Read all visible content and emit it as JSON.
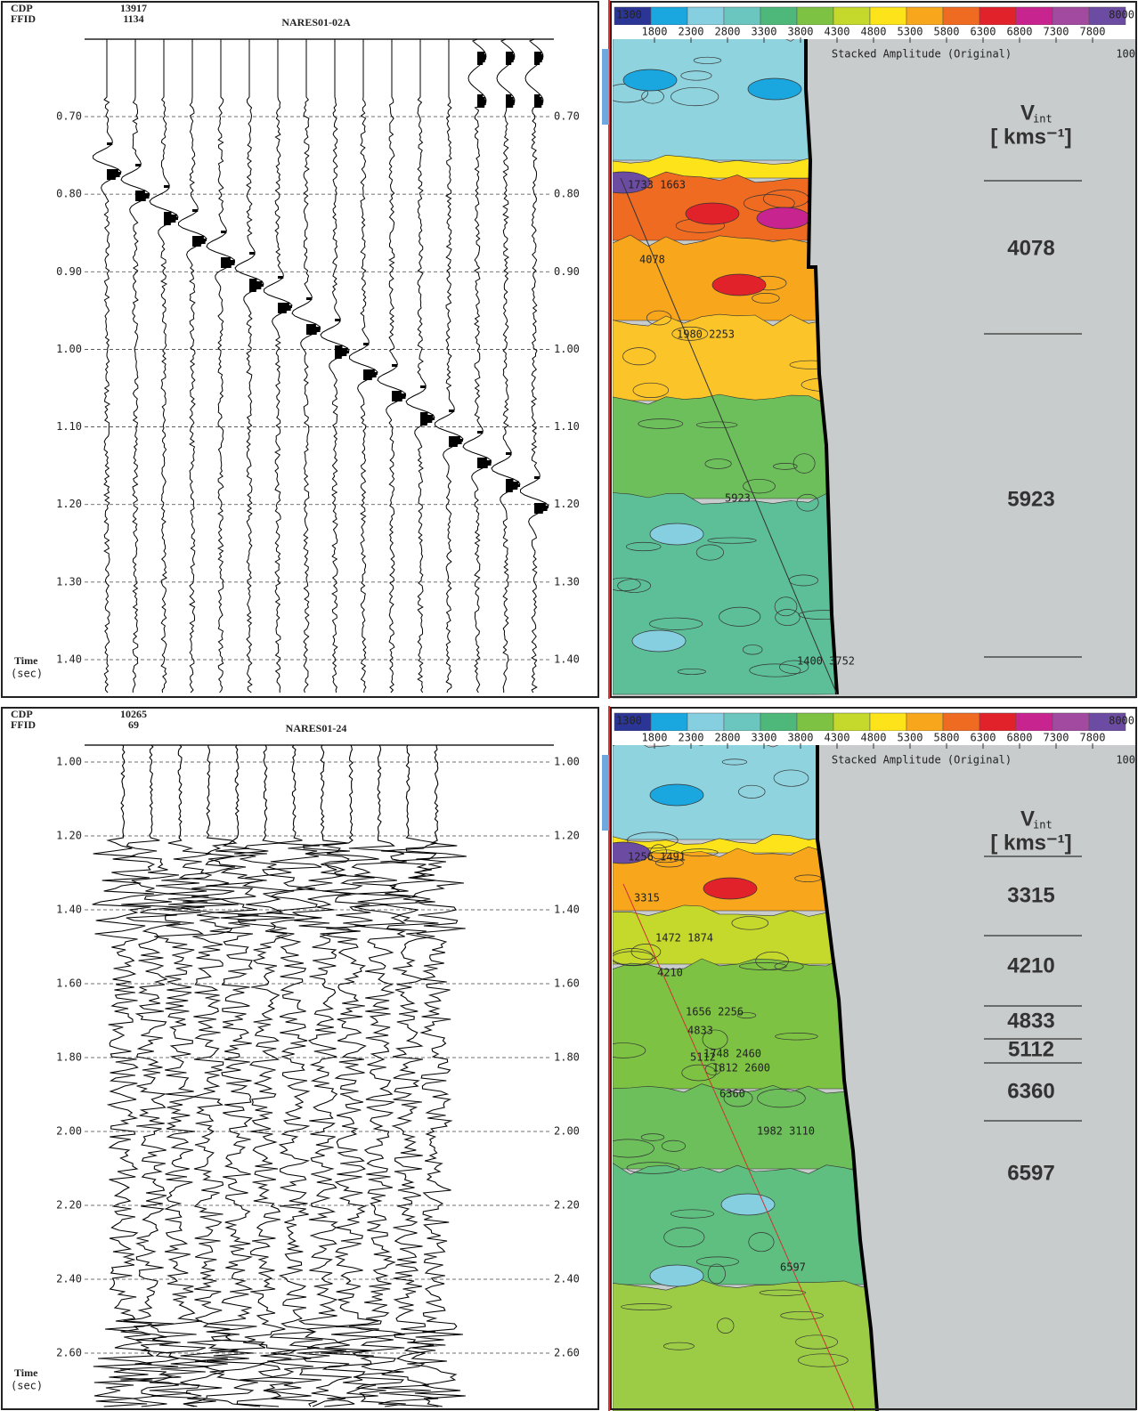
{
  "panels": [
    {
      "cdp_label": "CDP",
      "ffid_label": "FFID",
      "cdp": "13917",
      "ffid": "1134",
      "title": "NARES01-02A",
      "time_ticks": [
        "0.70",
        "0.80",
        "0.90",
        "1.00",
        "1.10",
        "1.20",
        "1.30",
        "1.40"
      ],
      "time_label": "Time",
      "time_unit": "(sec)",
      "colorbar_min": "1300",
      "colorbar_max": "8000",
      "velocity_ticks": [
        "1800",
        "2300",
        "2800",
        "3300",
        "3800",
        "4300",
        "4800",
        "5300",
        "5800",
        "6300",
        "6800",
        "7300",
        "7800"
      ],
      "amplitude_label": "Stacked Amplitude (Original)",
      "amplitude_max": "100",
      "vint_symbol": "V",
      "vint_subscript": "int",
      "vint_unit": "[ kms⁻¹]",
      "picks": [
        "1733 1663",
        "4078",
        "1980 2253",
        "5923",
        "1400 3752"
      ],
      "interval_velocities": [
        "4078",
        "5923"
      ]
    },
    {
      "cdp_label": "CDP",
      "ffid_label": "FFID",
      "cdp": "10265",
      "ffid": "69",
      "title": "NARES01-24",
      "time_ticks": [
        "1.00",
        "1.20",
        "1.40",
        "1.60",
        "1.80",
        "2.00",
        "2.20",
        "2.40",
        "2.60"
      ],
      "time_label": "Time",
      "time_unit": "(sec)",
      "colorbar_min": "1300",
      "colorbar_max": "8000",
      "velocity_ticks": [
        "1800",
        "2300",
        "2800",
        "3300",
        "3800",
        "4300",
        "4800",
        "5300",
        "5800",
        "6300",
        "6800",
        "7300",
        "7800"
      ],
      "amplitude_label": "Stacked Amplitude (Original)",
      "amplitude_max": "100",
      "vint_symbol": "V",
      "vint_subscript": "int",
      "vint_unit": "[ kms⁻¹]",
      "picks": [
        "1256 1491",
        "3315",
        "1472 1874",
        "4210",
        "1656 2256",
        "4833",
        "1748 2460",
        "5112",
        "1812 2600",
        "6360",
        "1982 3110",
        "6597"
      ],
      "interval_velocities": [
        "3315",
        "4210",
        "4833",
        "5112",
        "6360",
        "6597"
      ]
    }
  ]
}
